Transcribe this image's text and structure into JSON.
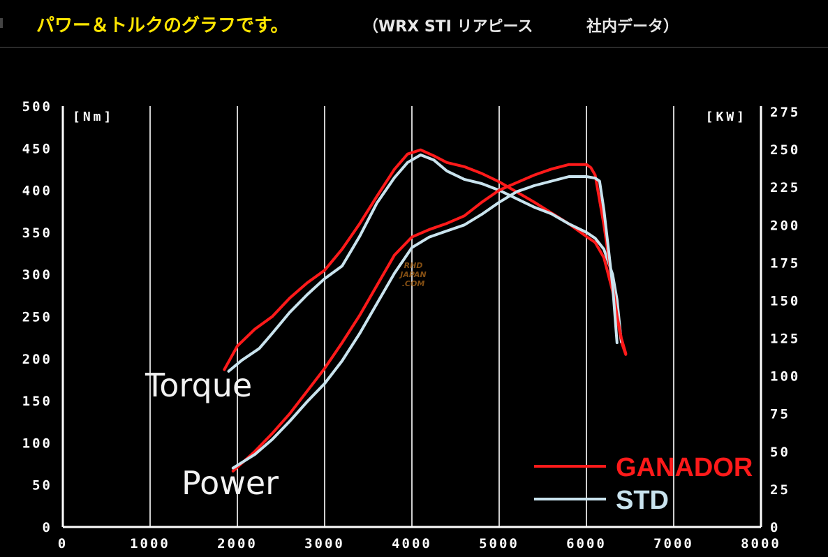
{
  "header": {
    "title": "パワー＆トルクのグラフです。",
    "subtitle": "（WRX STI リアピース",
    "note": "社内データ）"
  },
  "watermark": [
    "RHD",
    "JAPAN",
    ".COM"
  ],
  "colors": {
    "ganador": "#ff1a1a",
    "std": "#c9e3ee",
    "title": "#ffe600"
  },
  "chart_data": {
    "type": "line",
    "grid": true,
    "legend_position": "bottom-right",
    "x_axis": {
      "label": "",
      "ticks": [
        "0",
        "1000",
        "2000",
        "3000",
        "4000",
        "5000",
        "6000",
        "7000",
        "8000"
      ],
      "range": [
        0,
        8000
      ]
    },
    "y_left": {
      "unit": "[Nm]",
      "ticks": [
        "0",
        "50",
        "100",
        "150",
        "200",
        "250",
        "300",
        "350",
        "400",
        "450",
        "500"
      ],
      "range": [
        0,
        500
      ]
    },
    "y_right": {
      "unit": "[KW]",
      "ticks": [
        "0",
        "25",
        "50",
        "75",
        "100",
        "125",
        "150",
        "175",
        "200",
        "225",
        "250",
        "275"
      ],
      "range": [
        0,
        275
      ]
    },
    "curve_labels": {
      "torque": "Torque",
      "power": "Power"
    },
    "legend": [
      {
        "name": "GANADOR"
      },
      {
        "name": "STD"
      }
    ],
    "series": [
      {
        "name": "GANADOR",
        "quantity": "Torque",
        "axis": "left",
        "x": [
          1850,
          2000,
          2200,
          2400,
          2600,
          2800,
          3000,
          3200,
          3400,
          3600,
          3800,
          3950,
          4100,
          4250,
          4400,
          4600,
          4800,
          5000,
          5200,
          5400,
          5600,
          5800,
          6000,
          6100,
          6200,
          6300,
          6350,
          6400,
          6450
        ],
        "y": [
          187,
          215,
          235,
          250,
          272,
          290,
          305,
          330,
          360,
          393,
          425,
          443,
          448,
          441,
          433,
          428,
          420,
          410,
          398,
          386,
          373,
          360,
          345,
          338,
          320,
          280,
          250,
          220,
          205
        ]
      },
      {
        "name": "STD",
        "quantity": "Torque",
        "axis": "left",
        "x": [
          1900,
          2050,
          2250,
          2400,
          2600,
          2800,
          3000,
          3200,
          3400,
          3600,
          3800,
          3950,
          4100,
          4250,
          4400,
          4600,
          4800,
          5000,
          5200,
          5400,
          5600,
          5800,
          6000,
          6100,
          6200,
          6300,
          6350,
          6400
        ],
        "y": [
          185,
          198,
          212,
          230,
          255,
          276,
          295,
          310,
          345,
          385,
          415,
          433,
          442,
          436,
          423,
          413,
          408,
          400,
          390,
          380,
          372,
          360,
          350,
          343,
          330,
          300,
          270,
          220
        ]
      },
      {
        "name": "GANADOR",
        "quantity": "Power",
        "axis": "right",
        "x": [
          1950,
          2200,
          2400,
          2600,
          2800,
          3000,
          3200,
          3400,
          3600,
          3800,
          4000,
          4200,
          4400,
          4600,
          4800,
          5000,
          5200,
          5400,
          5600,
          5800,
          6000,
          6050,
          6100,
          6200,
          6250,
          6300,
          6350,
          6400,
          6450
        ],
        "y": [
          37,
          50,
          62,
          75,
          90,
          105,
          122,
          140,
          160,
          180,
          192,
          197,
          201,
          206,
          215,
          223,
          228,
          233,
          237,
          240,
          240,
          238,
          233,
          200,
          180,
          160,
          140,
          125,
          115
        ]
      },
      {
        "name": "STD",
        "quantity": "Power",
        "axis": "right",
        "x": [
          1950,
          2200,
          2400,
          2600,
          2800,
          3000,
          3200,
          3400,
          3600,
          3800,
          4000,
          4200,
          4400,
          4600,
          4800,
          5000,
          5200,
          5400,
          5600,
          5800,
          6000,
          6100,
          6150,
          6200,
          6250,
          6300,
          6350
        ],
        "y": [
          39,
          48,
          58,
          70,
          83,
          95,
          110,
          128,
          148,
          168,
          185,
          192,
          196,
          200,
          207,
          215,
          222,
          226,
          229,
          232,
          232,
          231,
          229,
          210,
          185,
          160,
          122
        ]
      }
    ]
  }
}
